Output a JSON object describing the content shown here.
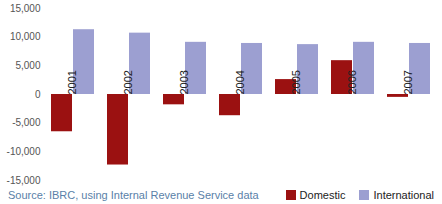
{
  "chart_data": {
    "type": "bar",
    "categories": [
      "2001",
      "2002",
      "2003",
      "2004",
      "2005",
      "2006",
      "2007"
    ],
    "series": [
      {
        "name": "Domestic",
        "color": "#9b1111",
        "values": [
          -6500,
          -12300,
          -1800,
          -3700,
          2600,
          5900,
          -500
        ]
      },
      {
        "name": "International",
        "color": "#9c9fd1",
        "values": [
          11300,
          10700,
          9100,
          8900,
          8700,
          9100,
          8900
        ]
      }
    ],
    "ylim": [
      -15000,
      15000
    ],
    "yticks": [
      {
        "value": -15000,
        "label": "-15,000"
      },
      {
        "value": -10000,
        "label": "-10,000"
      },
      {
        "value": -5000,
        "label": "-5,000"
      },
      0,
      {
        "value": 5000,
        "label": "5,000"
      },
      {
        "value": 10000,
        "label": "10,000"
      },
      {
        "value": 15000,
        "label": "15,000"
      }
    ],
    "grid": false,
    "legend": "bottom-right",
    "caption": "Source: IBRC, using Internal Revenue Service data"
  }
}
